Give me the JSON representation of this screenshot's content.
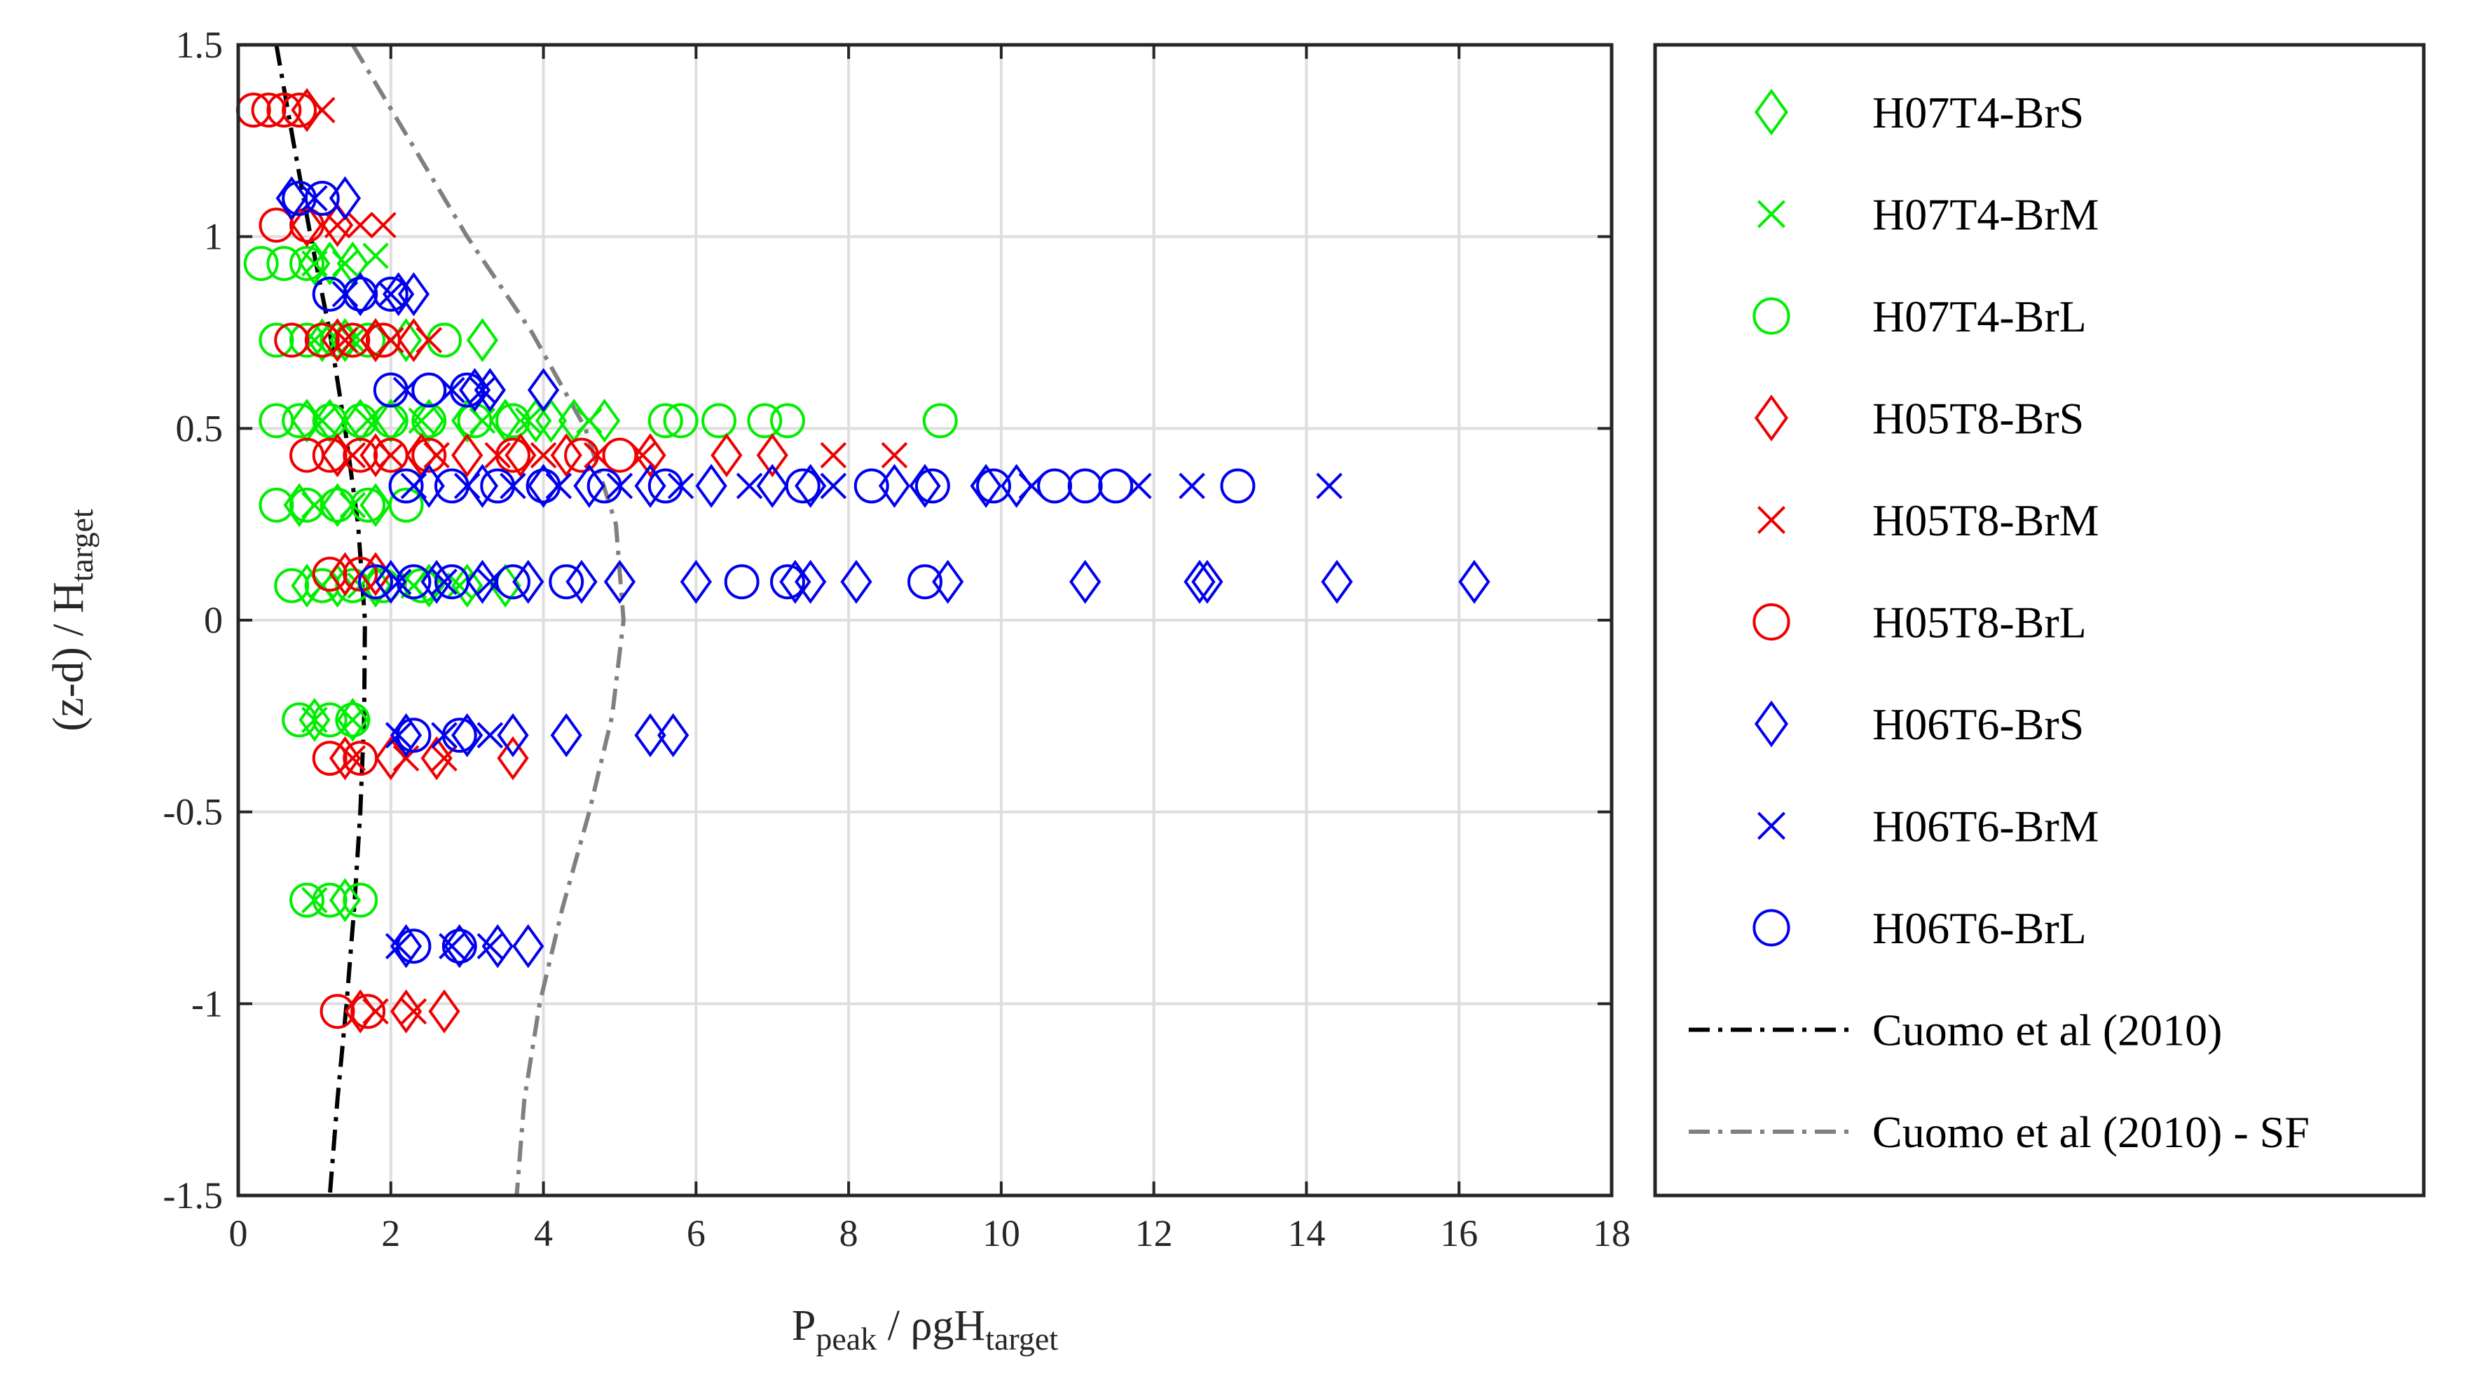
{
  "chart_data": {
    "type": "scatter",
    "xlabel": {
      "main": "P",
      "sub1": "peak",
      "mid": " / ρgH",
      "sub2": "target"
    },
    "ylabel": {
      "main": "(z-d) / H",
      "sub": "target"
    },
    "xlim": [
      0,
      18
    ],
    "ylim": [
      -1.5,
      1.5
    ],
    "xticks": [
      0,
      2,
      4,
      6,
      8,
      10,
      12,
      14,
      16,
      18
    ],
    "xtick_labels": [
      "0",
      "2",
      "4",
      "6",
      "8",
      "10",
      "12",
      "14",
      "16",
      "18"
    ],
    "yticks": [
      1.5,
      1,
      0.5,
      0,
      -0.5,
      -1,
      -1.5
    ],
    "ytick_labels": [
      "1.5",
      "1",
      "0.5",
      "0",
      "-0.5",
      "-1",
      "-1.5"
    ],
    "grid": true,
    "legend_position": "outside-right",
    "series": [
      {
        "name": "H07T4-BrS",
        "marker": "diamond",
        "color": "#00ee00",
        "points": [
          [
            1.0,
            0.93
          ],
          [
            1.2,
            0.93
          ],
          [
            1.5,
            0.93
          ],
          [
            1.1,
            0.73
          ],
          [
            1.4,
            0.73
          ],
          [
            1.8,
            0.73
          ],
          [
            2.2,
            0.73
          ],
          [
            3.2,
            0.73
          ],
          [
            0.9,
            0.52
          ],
          [
            1.2,
            0.52
          ],
          [
            1.6,
            0.52
          ],
          [
            2.0,
            0.52
          ],
          [
            2.5,
            0.52
          ],
          [
            3.0,
            0.52
          ],
          [
            3.5,
            0.52
          ],
          [
            3.9,
            0.52
          ],
          [
            4.1,
            0.52
          ],
          [
            4.4,
            0.52
          ],
          [
            4.8,
            0.52
          ],
          [
            0.8,
            0.3
          ],
          [
            1.3,
            0.3
          ],
          [
            1.8,
            0.3
          ],
          [
            0.9,
            0.09
          ],
          [
            1.3,
            0.09
          ],
          [
            1.8,
            0.09
          ],
          [
            2.5,
            0.09
          ],
          [
            3.0,
            0.09
          ],
          [
            3.5,
            0.09
          ],
          [
            1.0,
            -0.26
          ],
          [
            1.5,
            -0.26
          ],
          [
            1.4,
            -0.73
          ]
        ]
      },
      {
        "name": "H07T4-BrM",
        "marker": "x",
        "color": "#00ee00",
        "points": [
          [
            1.0,
            0.93
          ],
          [
            1.4,
            0.93
          ],
          [
            1.8,
            0.95
          ],
          [
            1.0,
            0.73
          ],
          [
            1.5,
            0.73
          ],
          [
            2.0,
            0.73
          ],
          [
            1.1,
            0.52
          ],
          [
            1.7,
            0.52
          ],
          [
            2.4,
            0.52
          ],
          [
            3.2,
            0.52
          ],
          [
            3.8,
            0.52
          ],
          [
            4.6,
            0.52
          ],
          [
            1.0,
            0.3
          ],
          [
            1.5,
            0.3
          ],
          [
            1.1,
            0.09
          ],
          [
            1.6,
            0.09
          ],
          [
            2.3,
            0.09
          ],
          [
            2.9,
            0.09
          ],
          [
            1.0,
            -0.26
          ],
          [
            1.5,
            -0.26
          ],
          [
            1.0,
            -0.73
          ]
        ]
      },
      {
        "name": "H07T4-BrL",
        "marker": "circle",
        "color": "#00ee00",
        "points": [
          [
            0.3,
            0.93
          ],
          [
            0.6,
            0.93
          ],
          [
            0.9,
            0.93
          ],
          [
            0.5,
            0.73
          ],
          [
            0.9,
            0.73
          ],
          [
            1.3,
            0.73
          ],
          [
            1.7,
            0.73
          ],
          [
            2.7,
            0.73
          ],
          [
            0.5,
            0.52
          ],
          [
            0.8,
            0.52
          ],
          [
            1.2,
            0.52
          ],
          [
            1.6,
            0.52
          ],
          [
            2.0,
            0.52
          ],
          [
            2.5,
            0.52
          ],
          [
            3.1,
            0.52
          ],
          [
            3.6,
            0.52
          ],
          [
            5.6,
            0.52
          ],
          [
            5.8,
            0.52
          ],
          [
            6.3,
            0.52
          ],
          [
            6.9,
            0.52
          ],
          [
            7.2,
            0.52
          ],
          [
            9.2,
            0.52
          ],
          [
            0.5,
            0.3
          ],
          [
            0.9,
            0.3
          ],
          [
            1.3,
            0.3
          ],
          [
            1.7,
            0.3
          ],
          [
            2.2,
            0.3
          ],
          [
            0.7,
            0.09
          ],
          [
            1.1,
            0.09
          ],
          [
            1.5,
            0.09
          ],
          [
            1.9,
            0.09
          ],
          [
            2.4,
            0.09
          ],
          [
            0.8,
            -0.26
          ],
          [
            1.2,
            -0.26
          ],
          [
            1.5,
            -0.26
          ],
          [
            0.9,
            -0.73
          ],
          [
            1.2,
            -0.73
          ],
          [
            1.6,
            -0.73
          ]
        ]
      },
      {
        "name": "H05T8-BrS",
        "marker": "diamond",
        "color": "#ee0000",
        "points": [
          [
            0.9,
            1.33
          ],
          [
            0.9,
            1.03
          ],
          [
            1.3,
            1.03
          ],
          [
            1.3,
            0.73
          ],
          [
            1.8,
            0.73
          ],
          [
            2.3,
            0.73
          ],
          [
            1.3,
            0.43
          ],
          [
            1.8,
            0.43
          ],
          [
            2.4,
            0.43
          ],
          [
            3.0,
            0.43
          ],
          [
            3.7,
            0.43
          ],
          [
            4.3,
            0.43
          ],
          [
            5.4,
            0.43
          ],
          [
            6.4,
            0.43
          ],
          [
            7.0,
            0.43
          ],
          [
            1.4,
            0.12
          ],
          [
            1.8,
            0.12
          ],
          [
            1.4,
            -0.36
          ],
          [
            2.0,
            -0.36
          ],
          [
            2.6,
            -0.36
          ],
          [
            3.6,
            -0.36
          ],
          [
            1.6,
            -1.02
          ],
          [
            2.2,
            -1.02
          ],
          [
            2.7,
            -1.02
          ]
        ]
      },
      {
        "name": "H05T8-BrM",
        "marker": "x",
        "color": "#ee0000",
        "points": [
          [
            1.1,
            1.33
          ],
          [
            1.3,
            1.03
          ],
          [
            1.6,
            1.03
          ],
          [
            1.9,
            1.03
          ],
          [
            1.4,
            0.73
          ],
          [
            2.0,
            0.73
          ],
          [
            2.5,
            0.73
          ],
          [
            1.5,
            0.43
          ],
          [
            2.0,
            0.43
          ],
          [
            2.6,
            0.43
          ],
          [
            3.4,
            0.43
          ],
          [
            4.0,
            0.43
          ],
          [
            4.7,
            0.43
          ],
          [
            5.3,
            0.43
          ],
          [
            7.8,
            0.43
          ],
          [
            8.6,
            0.43
          ],
          [
            1.5,
            -0.36
          ],
          [
            2.2,
            -0.36
          ],
          [
            2.7,
            -0.36
          ],
          [
            1.8,
            -1.02
          ],
          [
            2.3,
            -1.02
          ]
        ]
      },
      {
        "name": "H05T8-BrL",
        "marker": "circle",
        "color": "#ee0000",
        "points": [
          [
            0.2,
            1.33
          ],
          [
            0.4,
            1.33
          ],
          [
            0.6,
            1.33
          ],
          [
            0.8,
            1.33
          ],
          [
            0.5,
            1.03
          ],
          [
            0.9,
            1.03
          ],
          [
            0.7,
            0.73
          ],
          [
            1.1,
            0.73
          ],
          [
            1.5,
            0.73
          ],
          [
            1.9,
            0.73
          ],
          [
            0.9,
            0.43
          ],
          [
            1.2,
            0.43
          ],
          [
            1.6,
            0.43
          ],
          [
            2.0,
            0.43
          ],
          [
            2.5,
            0.43
          ],
          [
            3.6,
            0.43
          ],
          [
            4.5,
            0.43
          ],
          [
            5.0,
            0.43
          ],
          [
            1.2,
            0.12
          ],
          [
            1.6,
            0.12
          ],
          [
            1.2,
            -0.36
          ],
          [
            1.6,
            -0.36
          ],
          [
            1.3,
            -1.02
          ],
          [
            1.7,
            -1.02
          ]
        ]
      },
      {
        "name": "H06T6-BrS",
        "marker": "diamond",
        "color": "#0000ee",
        "points": [
          [
            0.7,
            1.1
          ],
          [
            1.4,
            1.1
          ],
          [
            1.6,
            0.85
          ],
          [
            2.1,
            0.85
          ],
          [
            2.3,
            0.85
          ],
          [
            3.1,
            0.6
          ],
          [
            3.3,
            0.6
          ],
          [
            4.0,
            0.6
          ],
          [
            2.5,
            0.35
          ],
          [
            3.2,
            0.35
          ],
          [
            4.0,
            0.35
          ],
          [
            4.6,
            0.35
          ],
          [
            5.4,
            0.35
          ],
          [
            6.2,
            0.35
          ],
          [
            7.0,
            0.35
          ],
          [
            7.5,
            0.35
          ],
          [
            8.6,
            0.35
          ],
          [
            9.0,
            0.35
          ],
          [
            9.8,
            0.35
          ],
          [
            10.2,
            0.35
          ],
          [
            2.0,
            0.1
          ],
          [
            2.6,
            0.1
          ],
          [
            3.2,
            0.1
          ],
          [
            3.8,
            0.1
          ],
          [
            4.5,
            0.1
          ],
          [
            5.0,
            0.1
          ],
          [
            6.0,
            0.1
          ],
          [
            7.3,
            0.1
          ],
          [
            7.5,
            0.1
          ],
          [
            8.1,
            0.1
          ],
          [
            9.3,
            0.1
          ],
          [
            11.1,
            0.1
          ],
          [
            12.6,
            0.1
          ],
          [
            12.7,
            0.1
          ],
          [
            14.4,
            0.1
          ],
          [
            16.2,
            0.1
          ],
          [
            2.2,
            -0.3
          ],
          [
            3.0,
            -0.3
          ],
          [
            3.6,
            -0.3
          ],
          [
            4.3,
            -0.3
          ],
          [
            5.4,
            -0.3
          ],
          [
            5.7,
            -0.3
          ],
          [
            2.2,
            -0.85
          ],
          [
            2.9,
            -0.85
          ],
          [
            3.4,
            -0.85
          ],
          [
            3.8,
            -0.85
          ]
        ]
      },
      {
        "name": "H06T6-BrM",
        "marker": "x",
        "color": "#0000ee",
        "points": [
          [
            1.0,
            1.1
          ],
          [
            1.4,
            0.85
          ],
          [
            2.0,
            0.85
          ],
          [
            2.2,
            0.6
          ],
          [
            2.8,
            0.6
          ],
          [
            3.2,
            0.6
          ],
          [
            2.3,
            0.35
          ],
          [
            3.0,
            0.35
          ],
          [
            3.6,
            0.35
          ],
          [
            4.2,
            0.35
          ],
          [
            5.0,
            0.35
          ],
          [
            5.8,
            0.35
          ],
          [
            6.7,
            0.35
          ],
          [
            7.8,
            0.35
          ],
          [
            10.4,
            0.35
          ],
          [
            11.8,
            0.35
          ],
          [
            12.5,
            0.35
          ],
          [
            14.3,
            0.35
          ],
          [
            2.1,
            0.1
          ],
          [
            2.7,
            0.1
          ],
          [
            3.3,
            0.1
          ],
          [
            2.1,
            -0.3
          ],
          [
            2.7,
            -0.3
          ],
          [
            3.3,
            -0.3
          ],
          [
            2.1,
            -0.85
          ],
          [
            2.8,
            -0.85
          ],
          [
            3.3,
            -0.85
          ]
        ]
      },
      {
        "name": "H06T6-BrL",
        "marker": "circle",
        "color": "#0000ee",
        "points": [
          [
            0.8,
            1.1
          ],
          [
            1.1,
            1.1
          ],
          [
            1.2,
            0.85
          ],
          [
            1.6,
            0.85
          ],
          [
            2.0,
            0.85
          ],
          [
            2.0,
            0.6
          ],
          [
            2.5,
            0.6
          ],
          [
            3.0,
            0.6
          ],
          [
            2.2,
            0.35
          ],
          [
            2.8,
            0.35
          ],
          [
            3.4,
            0.35
          ],
          [
            4.0,
            0.35
          ],
          [
            4.8,
            0.35
          ],
          [
            5.6,
            0.35
          ],
          [
            7.4,
            0.35
          ],
          [
            8.3,
            0.35
          ],
          [
            9.1,
            0.35
          ],
          [
            9.9,
            0.35
          ],
          [
            10.7,
            0.35
          ],
          [
            11.1,
            0.35
          ],
          [
            11.5,
            0.35
          ],
          [
            13.1,
            0.35
          ],
          [
            1.8,
            0.1
          ],
          [
            2.3,
            0.1
          ],
          [
            2.8,
            0.1
          ],
          [
            3.6,
            0.1
          ],
          [
            4.3,
            0.1
          ],
          [
            6.6,
            0.1
          ],
          [
            7.2,
            0.1
          ],
          [
            9.0,
            0.1
          ],
          [
            2.3,
            -0.3
          ],
          [
            2.9,
            -0.3
          ],
          [
            2.3,
            -0.85
          ],
          [
            2.9,
            -0.85
          ]
        ]
      }
    ],
    "curves": [
      {
        "name": "Cuomo et al (2010)",
        "style": "dashdot",
        "color": "#000000",
        "points": [
          [
            0.5,
            1.5
          ],
          [
            0.72,
            1.25
          ],
          [
            0.95,
            1.0
          ],
          [
            1.2,
            0.75
          ],
          [
            1.4,
            0.5
          ],
          [
            1.57,
            0.25
          ],
          [
            1.66,
            0.0
          ],
          [
            1.65,
            -0.25
          ],
          [
            1.6,
            -0.5
          ],
          [
            1.52,
            -0.75
          ],
          [
            1.42,
            -1.0
          ],
          [
            1.3,
            -1.25
          ],
          [
            1.2,
            -1.5
          ]
        ]
      },
      {
        "name": "Cuomo et al (2010) - SF",
        "style": "dashdot",
        "color": "#808080",
        "points": [
          [
            1.5,
            1.5
          ],
          [
            2.25,
            1.25
          ],
          [
            3.0,
            1.0
          ],
          [
            3.85,
            0.75
          ],
          [
            4.55,
            0.5
          ],
          [
            4.95,
            0.25
          ],
          [
            5.05,
            0.0
          ],
          [
            4.9,
            -0.25
          ],
          [
            4.6,
            -0.5
          ],
          [
            4.25,
            -0.75
          ],
          [
            3.95,
            -1.0
          ],
          [
            3.75,
            -1.25
          ],
          [
            3.65,
            -1.5
          ]
        ]
      }
    ]
  }
}
